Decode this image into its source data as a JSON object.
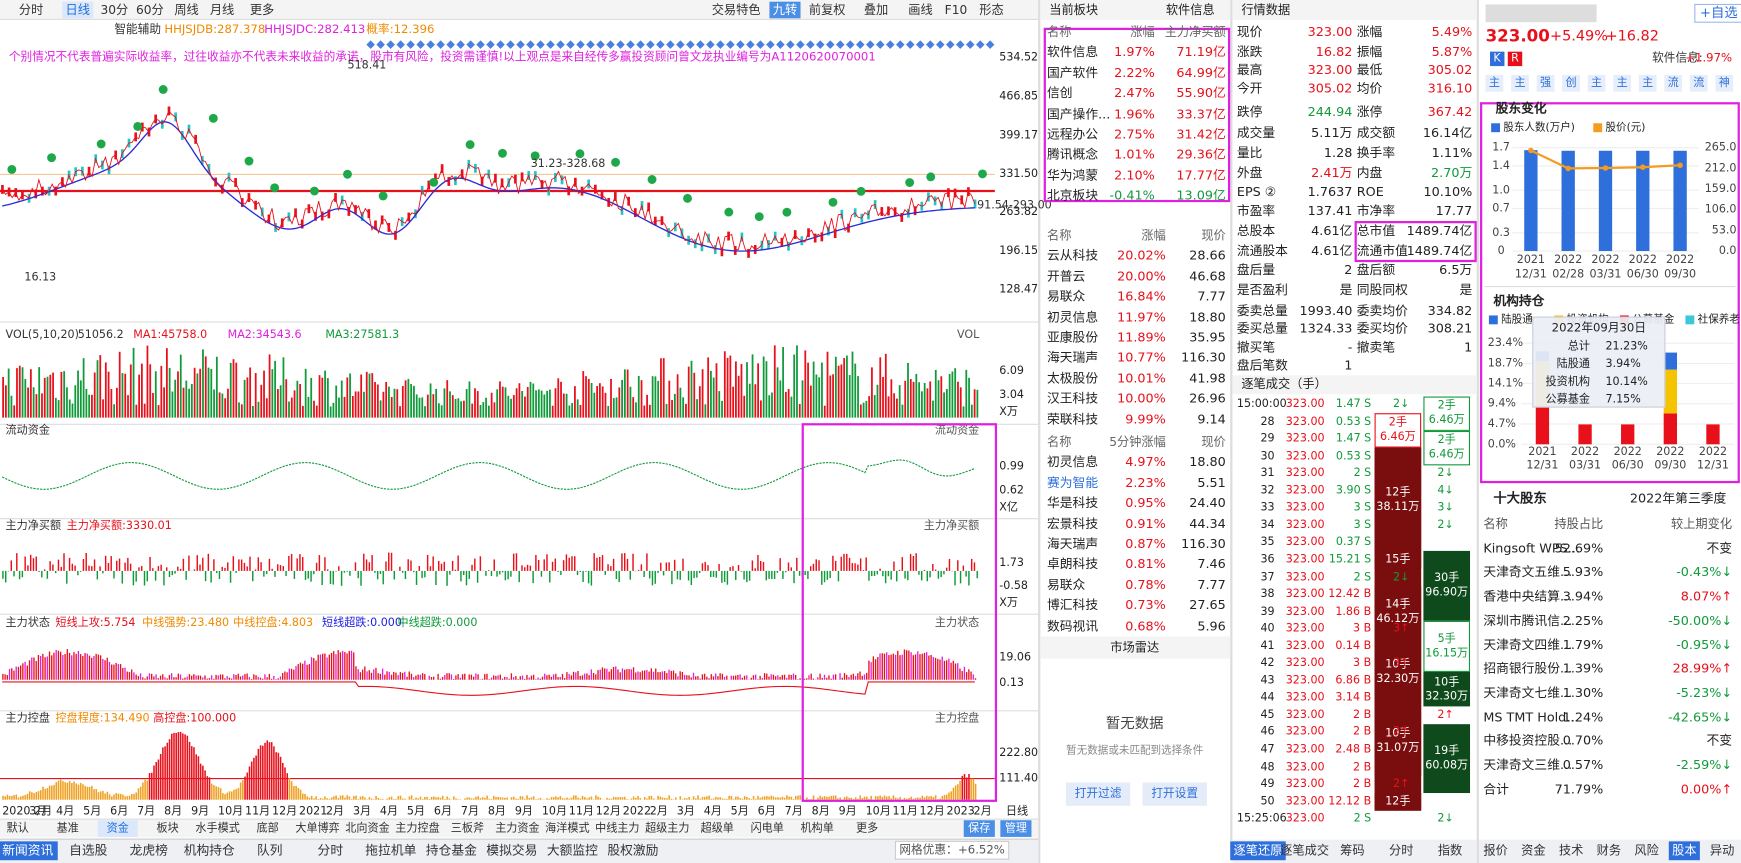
{
  "toolbar": {
    "tabs": [
      "分时",
      "日线",
      "30分",
      "60分",
      "周线",
      "月线",
      "更多"
    ],
    "right_tabs": [
      "交易特色",
      "九转",
      "前复权",
      "叠加",
      "画线",
      "F10",
      "形态"
    ]
  },
  "main_chart": {
    "indicators": [
      "智能辅助",
      "HHJSJDB:287.378",
      "HHJSJDC:282.413",
      "概率:12.396"
    ],
    "disclaimer": "个别情况不代表普遍实际收益率，过往收益亦不代表未来收益的承诺，股市有风险，投资需谨慎!以上观点是来自经传多赢投资顾问曾文龙执业编号为A1120620070001",
    "price_ticks": [
      "534.52",
      "466.85",
      "399.17",
      "331.50",
      "263.82",
      "196.15",
      "128.47"
    ],
    "annotations": [
      "518.41",
      "31.23-328.68",
      "91.54-293.00",
      "16.13"
    ]
  },
  "panes": [
    {
      "labels": [
        "VOL(5,10,20)",
        "51056.2",
        "MA1:45758.0",
        "MA2:34543.6",
        "MA3:27581.3"
      ],
      "right_label": "VOL",
      "ticks": [
        "6.09",
        "3.04",
        "X万"
      ]
    },
    {
      "labels": [
        "流动资金"
      ],
      "right_label": "流动资金",
      "ticks": [
        "0.99",
        "0.62",
        "X亿"
      ]
    },
    {
      "labels": [
        "主力净买额",
        "主力净买额:3330.01"
      ],
      "right_label": "主力净买额",
      "ticks": [
        "1.73",
        "-0.58",
        "X万"
      ]
    },
    {
      "labels": [
        "主力状态",
        "短线上攻:5.754",
        "中线强势:23.480",
        "中线控盘:4.803",
        "短线超跌:0.000",
        "中线超跌:0.000"
      ],
      "right_label": "主力状态",
      "ticks": [
        "19.06",
        "0.13"
      ]
    },
    {
      "labels": [
        "主力控盘",
        "控盘程度:134.490",
        "高控盘:100.000"
      ],
      "right_label": "主力控盘",
      "ticks": [
        "222.80",
        "111.40"
      ]
    }
  ],
  "x_axis": [
    "2020 2月",
    "3月",
    "4月",
    "5月",
    "6月",
    "7月",
    "8月",
    "9月",
    "10月",
    "11月",
    "12月",
    "2021",
    "2月",
    "3月",
    "4月",
    "5月",
    "6月",
    "7月",
    "8月",
    "9月",
    "10月",
    "11月",
    "12月",
    "2022",
    "2月",
    "3月",
    "4月",
    "5月",
    "6月",
    "7月",
    "8月",
    "9月",
    "10月",
    "11月",
    "12月",
    "2023",
    "2月",
    "日线"
  ],
  "indicator_tabs": [
    "默认",
    "基准",
    "资金",
    "板块",
    "水手模式",
    "底部",
    "大单博弈",
    "北向资金",
    "主力控盘",
    "三板斧",
    "主力资金",
    "海洋模式",
    "中线主力",
    "超级主力",
    "超级单",
    "闪电单",
    "机构单",
    "更多",
    "保存",
    "管理"
  ],
  "bottom_nav": [
    "新闻资讯",
    "自选股",
    "龙虎榜",
    "机构持仓",
    "队列",
    "分时",
    "拖拉机单",
    "持仓基金",
    "模拟交易",
    "大额监控",
    "股权激励"
  ],
  "grid_offer": {
    "label": "网格优惠：",
    "value": "+6.52%"
  },
  "sector_panel": {
    "title": "当前板块",
    "current": "软件信息",
    "header": [
      "名称",
      "涨幅",
      "主力净买额"
    ],
    "rows": [
      [
        "软件信息",
        "1.97%",
        "71.19亿"
      ],
      [
        "国产软件",
        "2.22%",
        "64.99亿"
      ],
      [
        "信创",
        "2.47%",
        "55.90亿"
      ],
      [
        "国产操作...",
        "1.96%",
        "33.37亿"
      ],
      [
        "远程办公",
        "2.75%",
        "31.42亿"
      ],
      [
        "腾讯概念",
        "1.01%",
        "29.36亿"
      ],
      [
        "华为鸿蒙",
        "2.10%",
        "17.77亿"
      ],
      [
        "北京板块",
        "-0.41%",
        "13.09亿"
      ]
    ]
  },
  "stock_list": {
    "header": [
      "名称",
      "涨幅",
      "现价"
    ],
    "rows": [
      [
        "云从科技",
        "20.02%",
        "28.66"
      ],
      [
        "开普云",
        "20.00%",
        "46.68"
      ],
      [
        "易联众",
        "16.84%",
        "7.77"
      ],
      [
        "初灵信息",
        "11.97%",
        "18.80"
      ],
      [
        "亚康股份",
        "11.89%",
        "35.95"
      ],
      [
        "海天瑞声",
        "10.77%",
        "116.30"
      ],
      [
        "太极股份",
        "10.01%",
        "41.98"
      ],
      [
        "汉王科技",
        "10.00%",
        "26.96"
      ],
      [
        "荣联科技",
        "9.99%",
        "9.14"
      ]
    ]
  },
  "fast_list": {
    "header": [
      "名称",
      "5分钟涨幅",
      "现价"
    ],
    "rows": [
      [
        "初灵信息",
        "4.97%",
        "18.80"
      ],
      [
        "赛为智能",
        "2.23%",
        "5.51"
      ],
      [
        "华是科技",
        "0.95%",
        "24.40"
      ],
      [
        "宏景科技",
        "0.91%",
        "44.34"
      ],
      [
        "海天瑞声",
        "0.87%",
        "116.30"
      ],
      [
        "卓朗科技",
        "0.81%",
        "7.46"
      ],
      [
        "易联众",
        "0.78%",
        "7.77"
      ],
      [
        "博汇科技",
        "0.73%",
        "27.65"
      ],
      [
        "数码视讯",
        "0.68%",
        "5.96"
      ]
    ]
  },
  "radar": {
    "title": "市场雷达",
    "empty": "暂无数据",
    "hint": "暂无数据或未匹配到选择条件",
    "buttons": [
      "打开过滤",
      "打开设置"
    ]
  },
  "quote": {
    "title": "行情数据",
    "rows": [
      [
        "现价",
        "323.00",
        "涨幅",
        "5.49%"
      ],
      [
        "涨跌",
        "16.82",
        "振幅",
        "5.87%"
      ],
      [
        "最高",
        "323.00",
        "最低",
        "305.02"
      ],
      [
        "今开",
        "305.02",
        "均价",
        "316.10"
      ],
      [
        "跌停",
        "244.94",
        "涨停",
        "367.42"
      ],
      [
        "成交量",
        "5.11万",
        "成交额",
        "16.14亿"
      ],
      [
        "量比",
        "1.28",
        "换手率",
        "1.11%"
      ],
      [
        "外盘",
        "2.41万",
        "内盘",
        "2.70万"
      ],
      [
        "EPS ②",
        "1.7637",
        "ROE",
        "10.10%"
      ],
      [
        "市盈率",
        "137.41",
        "市净率",
        "17.77"
      ],
      [
        "总股本",
        "4.61亿",
        "总市值",
        "1489.74亿"
      ],
      [
        "流通股本",
        "4.61亿",
        "流通市值",
        "1489.74亿"
      ],
      [
        "盘后量",
        "2",
        "盘后额",
        "6.5万"
      ],
      [
        "是否盈利",
        "是",
        "同股同权",
        "是"
      ],
      [
        "委卖总量",
        "1993.40",
        "委卖均价",
        "334.82"
      ],
      [
        "委买总量",
        "1324.33",
        "委买均价",
        "308.21"
      ],
      [
        "撤买笔",
        "-",
        "撤卖笔",
        "1"
      ],
      [
        "盘后笔数",
        "1"
      ]
    ]
  },
  "trades": {
    "title": "逐笔成交（手）",
    "times": [
      "15:00:00",
      "28",
      "29",
      "30",
      "31",
      "32",
      "33",
      "34",
      "35",
      "36",
      "37",
      "38",
      "39",
      "40",
      "41",
      "42",
      "43",
      "44",
      "45",
      "46",
      "47",
      "48",
      "49",
      "50",
      "15:25:06"
    ],
    "price": "323.00",
    "volumes": [
      "1.47 S",
      "0.53 S",
      "1.47 S",
      "0.53 S",
      "2 S",
      "3.90 S",
      "3 S",
      "3 S",
      "0.37 S",
      "15.21 S",
      "2 S",
      "12.42 B",
      "1.86 B",
      "3 B",
      "0.14 B",
      "3 B",
      "6.86 B",
      "3.14 B",
      "2 B",
      "2 B",
      "2.48 B",
      "2 B",
      "2 B",
      "12.12 B",
      "2 S"
    ],
    "counts": [
      "2↓",
      null,
      null,
      null,
      "2↓",
      "4↓",
      "3↓",
      "2↓",
      null,
      null,
      "2↓",
      null,
      null,
      "3↑",
      null,
      "3↑",
      null,
      null,
      "2↑",
      "2↑",
      null,
      null,
      "2↑",
      null,
      "2↓"
    ],
    "sell_blocks": [
      [
        "2手",
        "6.46万"
      ],
      [
        "12手",
        "38.11万"
      ],
      [
        "15手"
      ],
      [
        "14手",
        "46.12万"
      ],
      [
        "10手",
        "32.30万"
      ],
      [
        "10手",
        "31.07万"
      ],
      [
        "12手"
      ]
    ],
    "buy_blocks": [
      [
        "2手",
        "6.46万"
      ],
      [
        "2手",
        "6.46万"
      ],
      [
        "30手",
        "96.90万"
      ],
      [
        "5手",
        "16.15万"
      ],
      [
        "10手",
        "32.30万"
      ],
      [
        "19手",
        "60.08万"
      ]
    ],
    "tabs": [
      "逐笔还原",
      "逐笔成交",
      "筹码",
      "分时",
      "指数"
    ]
  },
  "stock_header": {
    "price": "323.00",
    "change_pct": "+5.49%",
    "change": "+16.82",
    "watch": "+自选",
    "sector": "软件信息:",
    "sector_pct": "+1.97%",
    "badges": [
      "K",
      "R"
    ],
    "icons": [
      "主",
      "主",
      "强",
      "创",
      "主",
      "主",
      "主",
      "流",
      "流",
      "神"
    ]
  },
  "chart_data": [
    {
      "type": "bar-line",
      "title": "股东变化",
      "categories": [
        "12/31",
        "02/28",
        "03/31",
        "06/30",
        "09/30"
      ],
      "category_years": [
        "2021",
        "2022",
        "2022",
        "2022",
        "2022"
      ],
      "series": [
        {
          "name": "股东人数(万户)",
          "color": "#2f6fdb",
          "values": [
            1.66,
            1.65,
            1.65,
            1.65,
            1.65
          ]
        },
        {
          "name": "股价(元)",
          "color": "#f39c1f",
          "axis": "y2",
          "values": [
            258,
            212,
            213,
            215,
            220
          ]
        }
      ],
      "ylim": [
        0,
        1.7
      ],
      "yticks": [
        0,
        0.3,
        0.7,
        {
          "value": 1.0,
          "label": "1.0"
        },
        1.4,
        1.7
      ],
      "y2lim": [
        0,
        265
      ],
      "y2ticks": [
        {
          "value": 0,
          "label": "0.0"
        },
        {
          "value": 53,
          "label": "53.0"
        },
        {
          "value": 106,
          "label": "106.0"
        },
        {
          "value": 159,
          "label": "159.0"
        },
        {
          "value": 212,
          "label": "212.0"
        },
        {
          "value": 265,
          "label": "265.0"
        }
      ]
    },
    {
      "type": "stacked-bar",
      "title": "机构持仓",
      "categories": [
        "12/31",
        "03/31",
        "06/30",
        "09/30",
        "12/31"
      ],
      "category_years": [
        "2021",
        "2022",
        "2022",
        "2022",
        "2022"
      ],
      "series": [
        {
          "name": "陆股通",
          "color": "#2f6fdb",
          "values": [
            2.2,
            0,
            0,
            3.94,
            0
          ]
        },
        {
          "name": "投资机构",
          "color": "#f5c400",
          "values": [
            10.5,
            0,
            0,
            10.14,
            0
          ]
        },
        {
          "name": "公募基金",
          "color": "#e8101a",
          "values": [
            8.8,
            4.6,
            4.6,
            7.15,
            4.6
          ]
        },
        {
          "name": "社保养老",
          "color": "#3cc8d8",
          "values": [
            0,
            0,
            0,
            0,
            0
          ]
        }
      ],
      "ylim": [
        0,
        23.4
      ],
      "yticks": [
        {
          "value": 0,
          "label": "0.0%"
        },
        {
          "value": 4.7,
          "label": "4.7%"
        },
        {
          "value": 9.4,
          "label": "9.4%"
        },
        {
          "value": 14.1,
          "label": "14.1%"
        },
        {
          "value": 18.7,
          "label": "18.7%"
        },
        {
          "value": 23.4,
          "label": "23.4%"
        }
      ],
      "tooltip": {
        "title": "2022年09月30日",
        "rows": [
          [
            "总计",
            "21.23%"
          ],
          [
            "陆股通",
            "3.94%"
          ],
          [
            "投资机构",
            "10.14%"
          ],
          [
            "公募基金",
            "7.15%"
          ]
        ]
      }
    }
  ],
  "holders": {
    "title": "十大股东",
    "period": "2022年第三季度",
    "header": [
      "名称",
      "持股占比",
      "较上期变化"
    ],
    "rows": [
      [
        "Kingsoft WPS...",
        "52.69%",
        "不变"
      ],
      [
        "天津奇文五维...",
        "5.93%",
        "-0.43%↓"
      ],
      [
        "香港中央结算...",
        "3.94%",
        "8.07%↑"
      ],
      [
        "深圳市腾讯信...",
        "2.25%",
        "-50.00%↓"
      ],
      [
        "天津奇文四维...",
        "1.79%",
        "-0.95%↓"
      ],
      [
        "招商银行股份...",
        "1.39%",
        "28.99%↑"
      ],
      [
        "天津奇文七维...",
        "1.30%",
        "-5.23%↓"
      ],
      [
        "MS TMT Hold...",
        "1.24%",
        "-42.65%↓"
      ],
      [
        "中移投资控股...",
        "0.70%",
        "不变"
      ],
      [
        "天津奇文三维...",
        "0.57%",
        "-2.59%↓"
      ],
      [
        "合计",
        "71.79%",
        "0.00%↑"
      ]
    ]
  },
  "right_tabs": [
    "报价",
    "资金",
    "技术",
    "财务",
    "风险",
    "股本",
    "异动"
  ]
}
